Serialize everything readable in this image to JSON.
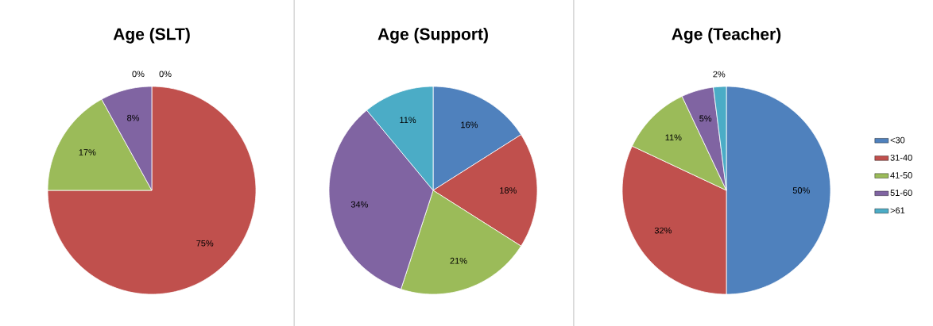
{
  "chart_data": [
    {
      "type": "pie",
      "title": "Age (SLT)",
      "categories": [
        null,
        null,
        null,
        null,
        null
      ],
      "values": [
        0,
        75,
        17,
        8,
        0
      ],
      "value_labels": [
        "0%",
        "75%",
        "17%",
        "8%",
        "0%"
      ],
      "colors": [
        "#4f81bd",
        "#c0504d",
        "#9bbb59",
        "#8064a2",
        "#4bacc6"
      ],
      "legend": false
    },
    {
      "type": "pie",
      "title": "Age (Support)",
      "categories": [
        null,
        null,
        null,
        null,
        null
      ],
      "values": [
        16,
        18,
        21,
        34,
        11
      ],
      "value_labels": [
        "16%",
        "18%",
        "21%",
        "34%",
        "11%"
      ],
      "colors": [
        "#4f81bd",
        "#c0504d",
        "#9bbb59",
        "#8064a2",
        "#4bacc6"
      ],
      "legend": false
    },
    {
      "type": "pie",
      "title": "Age (Teacher)",
      "categories": [
        "<30",
        "31-40",
        "41-50",
        "51-60",
        ">61"
      ],
      "values": [
        50,
        32,
        11,
        5,
        2
      ],
      "value_labels": [
        "50%",
        "32%",
        "11%",
        "5%",
        "2%"
      ],
      "colors": [
        "#4f81bd",
        "#c0504d",
        "#9bbb59",
        "#8064a2",
        "#4bacc6"
      ],
      "legend": "right"
    }
  ]
}
